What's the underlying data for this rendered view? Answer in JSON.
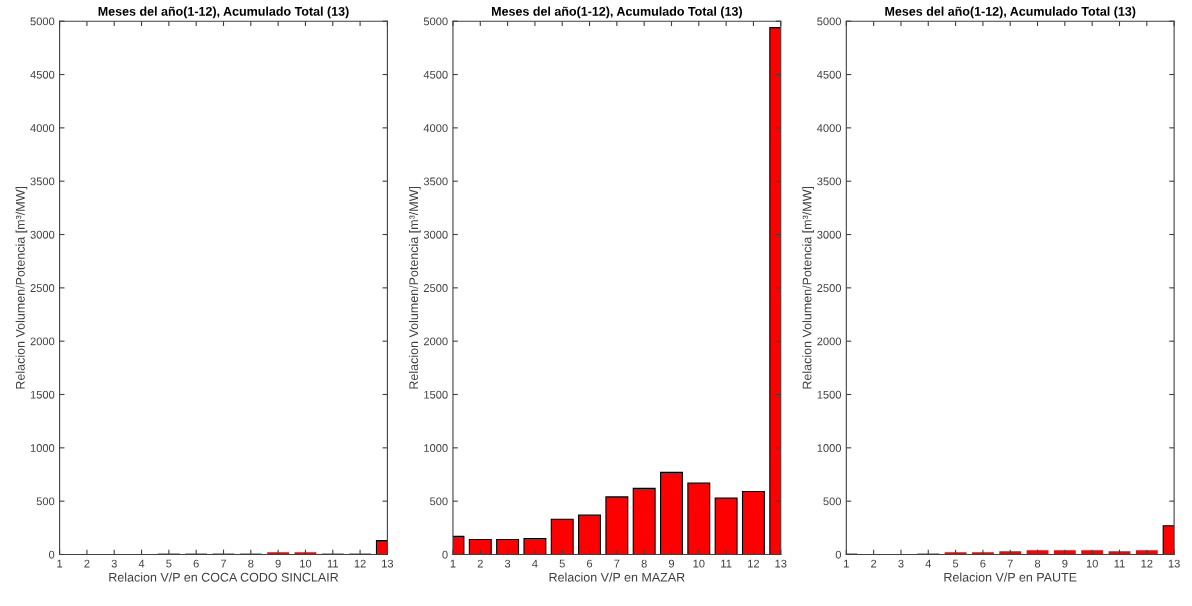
{
  "chart_data": [
    {
      "type": "bar",
      "title": "Meses del año(1-12), Acumulado Total (13)",
      "xlabel": "Relacion V/P en COCA CODO SINCLAIR",
      "ylabel": "Relacion Volumen/Potencia [m³/MW]",
      "x": [
        1,
        2,
        3,
        4,
        5,
        6,
        7,
        8,
        9,
        10,
        11,
        12,
        13
      ],
      "values": [
        0,
        0,
        0,
        0,
        10,
        10,
        10,
        10,
        20,
        20,
        10,
        10,
        130
      ],
      "color": "#ff0000",
      "xlim": [
        1,
        13
      ],
      "xticks": [
        1,
        2,
        3,
        4,
        5,
        6,
        7,
        8,
        9,
        10,
        11,
        12,
        13
      ],
      "ylim": [
        0,
        5000
      ],
      "yticks": [
        0,
        500,
        1000,
        1500,
        2000,
        2500,
        3000,
        3500,
        4000,
        4500,
        5000
      ],
      "grid": false,
      "legend": false
    },
    {
      "type": "bar",
      "title": "Meses del año(1-12), Acumulado Total (13)",
      "xlabel": "Relacion V/P en MAZAR",
      "ylabel": "Relacion Volumen/Potencia [m³/MW]",
      "x": [
        1,
        2,
        3,
        4,
        5,
        6,
        7,
        8,
        9,
        10,
        11,
        12,
        13
      ],
      "values": [
        170,
        140,
        140,
        150,
        330,
        370,
        540,
        620,
        770,
        670,
        530,
        590,
        4940
      ],
      "color": "#ff0000",
      "xlim": [
        1,
        13
      ],
      "xticks": [
        1,
        2,
        3,
        4,
        5,
        6,
        7,
        8,
        9,
        10,
        11,
        12,
        13
      ],
      "ylim": [
        0,
        5000
      ],
      "yticks": [
        0,
        500,
        1000,
        1500,
        2000,
        2500,
        3000,
        3500,
        4000,
        4500,
        5000
      ],
      "grid": false,
      "legend": false
    },
    {
      "type": "bar",
      "title": "Meses del año(1-12), Acumulado Total (13)",
      "xlabel": "Relacion V/P en PAUTE",
      "ylabel": "Relacion Volumen/Potencia [m³/MW]",
      "x": [
        1,
        2,
        3,
        4,
        5,
        6,
        7,
        8,
        9,
        10,
        11,
        12,
        13
      ],
      "values": [
        10,
        0,
        0,
        10,
        20,
        20,
        30,
        40,
        40,
        40,
        30,
        40,
        270
      ],
      "color": "#ff0000",
      "xlim": [
        1,
        13
      ],
      "xticks": [
        1,
        2,
        3,
        4,
        5,
        6,
        7,
        8,
        9,
        10,
        11,
        12,
        13
      ],
      "ylim": [
        0,
        5000
      ],
      "yticks": [
        0,
        500,
        1000,
        1500,
        2000,
        2500,
        3000,
        3500,
        4000,
        4500,
        5000
      ],
      "grid": false,
      "legend": false
    }
  ]
}
